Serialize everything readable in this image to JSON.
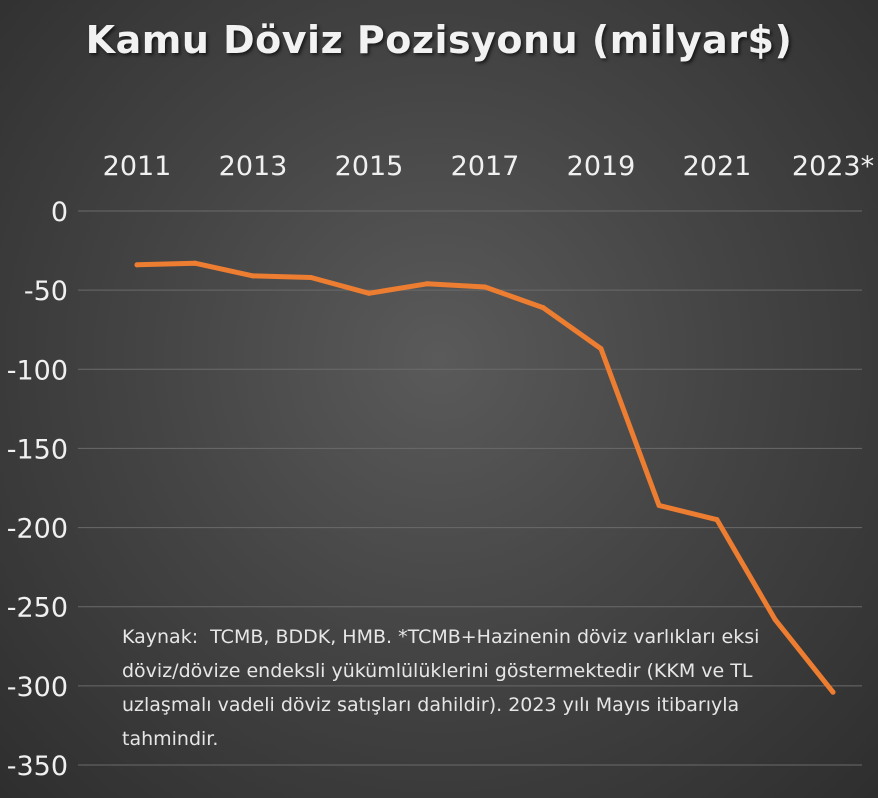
{
  "chart_data": {
    "type": "line",
    "title": "Kamu Döviz Pozisyonu (milyar$)",
    "x": [
      "2011",
      "2012",
      "2013",
      "2014",
      "2015",
      "2016",
      "2017",
      "2018",
      "2019",
      "2020",
      "2021",
      "2022",
      "2023*"
    ],
    "x_tick_labels": [
      "2011",
      "2013",
      "2015",
      "2017",
      "2019",
      "2021",
      "2023*"
    ],
    "series": [
      {
        "values": [
          -34,
          -33,
          -41,
          -42,
          -52,
          -46,
          -48,
          -61,
          -87,
          -186,
          -195,
          -258,
          -304
        ]
      }
    ],
    "ylim": [
      -350,
      0
    ],
    "y_ticks": [
      0,
      -50,
      -100,
      -150,
      -200,
      -250,
      -300,
      -350
    ],
    "y_tick_labels": [
      "0",
      "-50",
      "-100",
      "-150",
      "-200",
      "-250",
      "-300",
      "-350"
    ],
    "x_axis_position": "top",
    "grid": true,
    "legend": "none",
    "line_color": "#ed7d31",
    "gridline_color": "#6a6a6a",
    "annotation": "Kaynak:  TCMB, BDDK, HMB. *TCMB+Hazinenin döviz varlıkları eksi döviz/dövize endeksli yükümlülüklerini göstermektedir (KKM ve TL uzlaşmalı vadeli döviz satışları dahildir). 2023 yılı Mayıs itibarıyla tahmindir."
  }
}
